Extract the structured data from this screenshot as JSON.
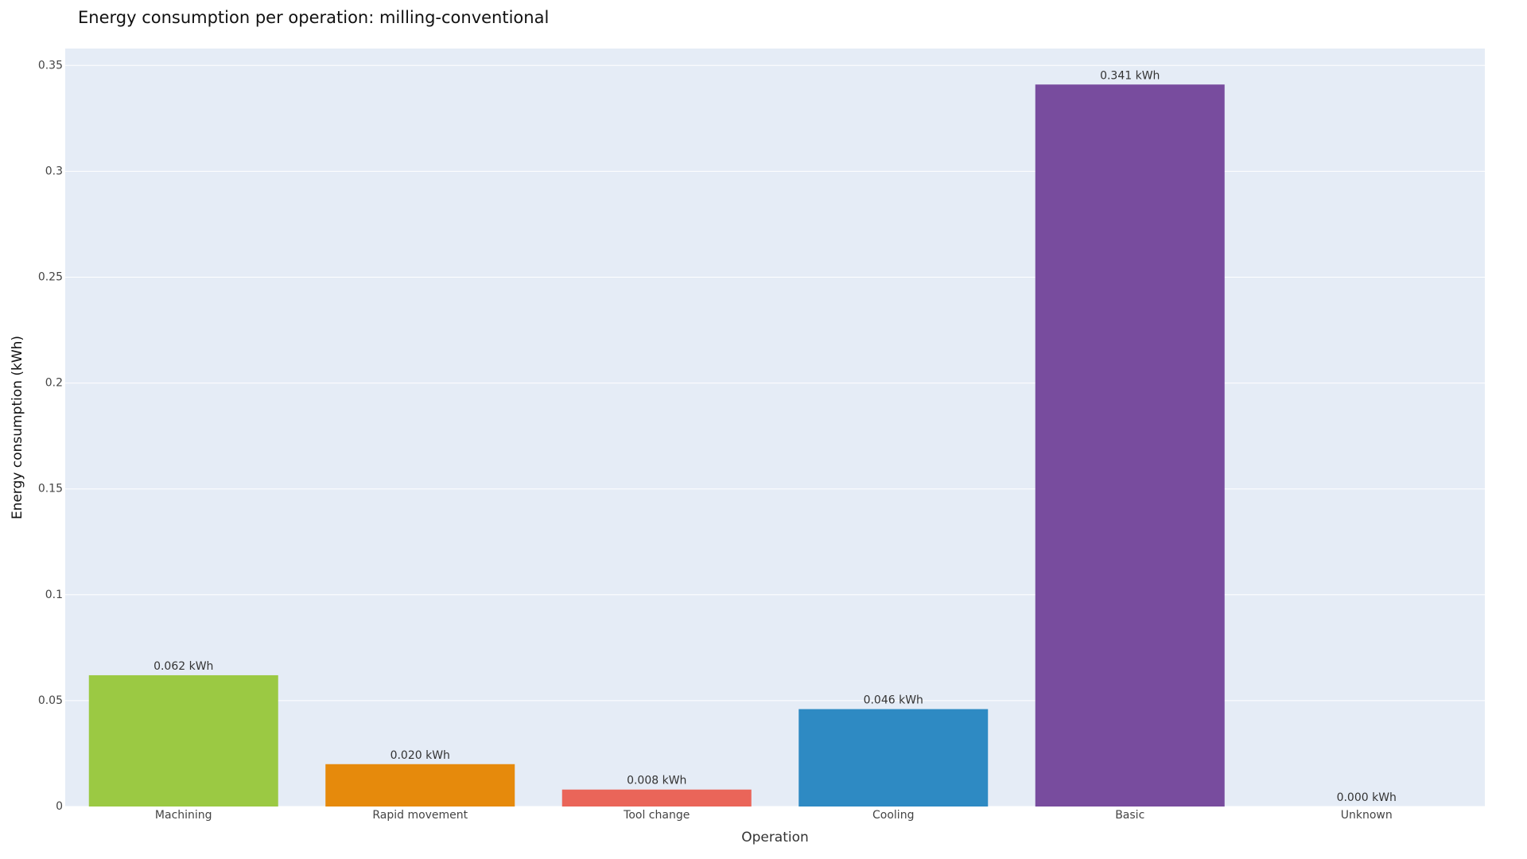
{
  "chart_data": {
    "type": "bar",
    "title": "Energy consumption per operation: milling-conventional",
    "x_label": "Operation",
    "y_label": "Energy consumption (kWh)",
    "categories": [
      "Machining",
      "Rapid movement",
      "Tool change",
      "Cooling",
      "Basic",
      "Unknown"
    ],
    "values": [
      0.062,
      0.02,
      0.008,
      0.046,
      0.341,
      0.0
    ],
    "value_labels": [
      "0.062 kWh",
      "0.020 kWh",
      "0.008 kWh",
      "0.046 kWh",
      "0.341 kWh",
      "0.000 kWh"
    ],
    "colors": [
      "#9bc943",
      "#e68a0c",
      "#ea6559",
      "#2e8ac3",
      "#784c9e",
      "#636efa"
    ],
    "ylim": [
      0,
      0.358
    ],
    "yticks": [
      0,
      0.05,
      0.1,
      0.15,
      0.2,
      0.25,
      0.3,
      0.35
    ],
    "grid": true
  }
}
